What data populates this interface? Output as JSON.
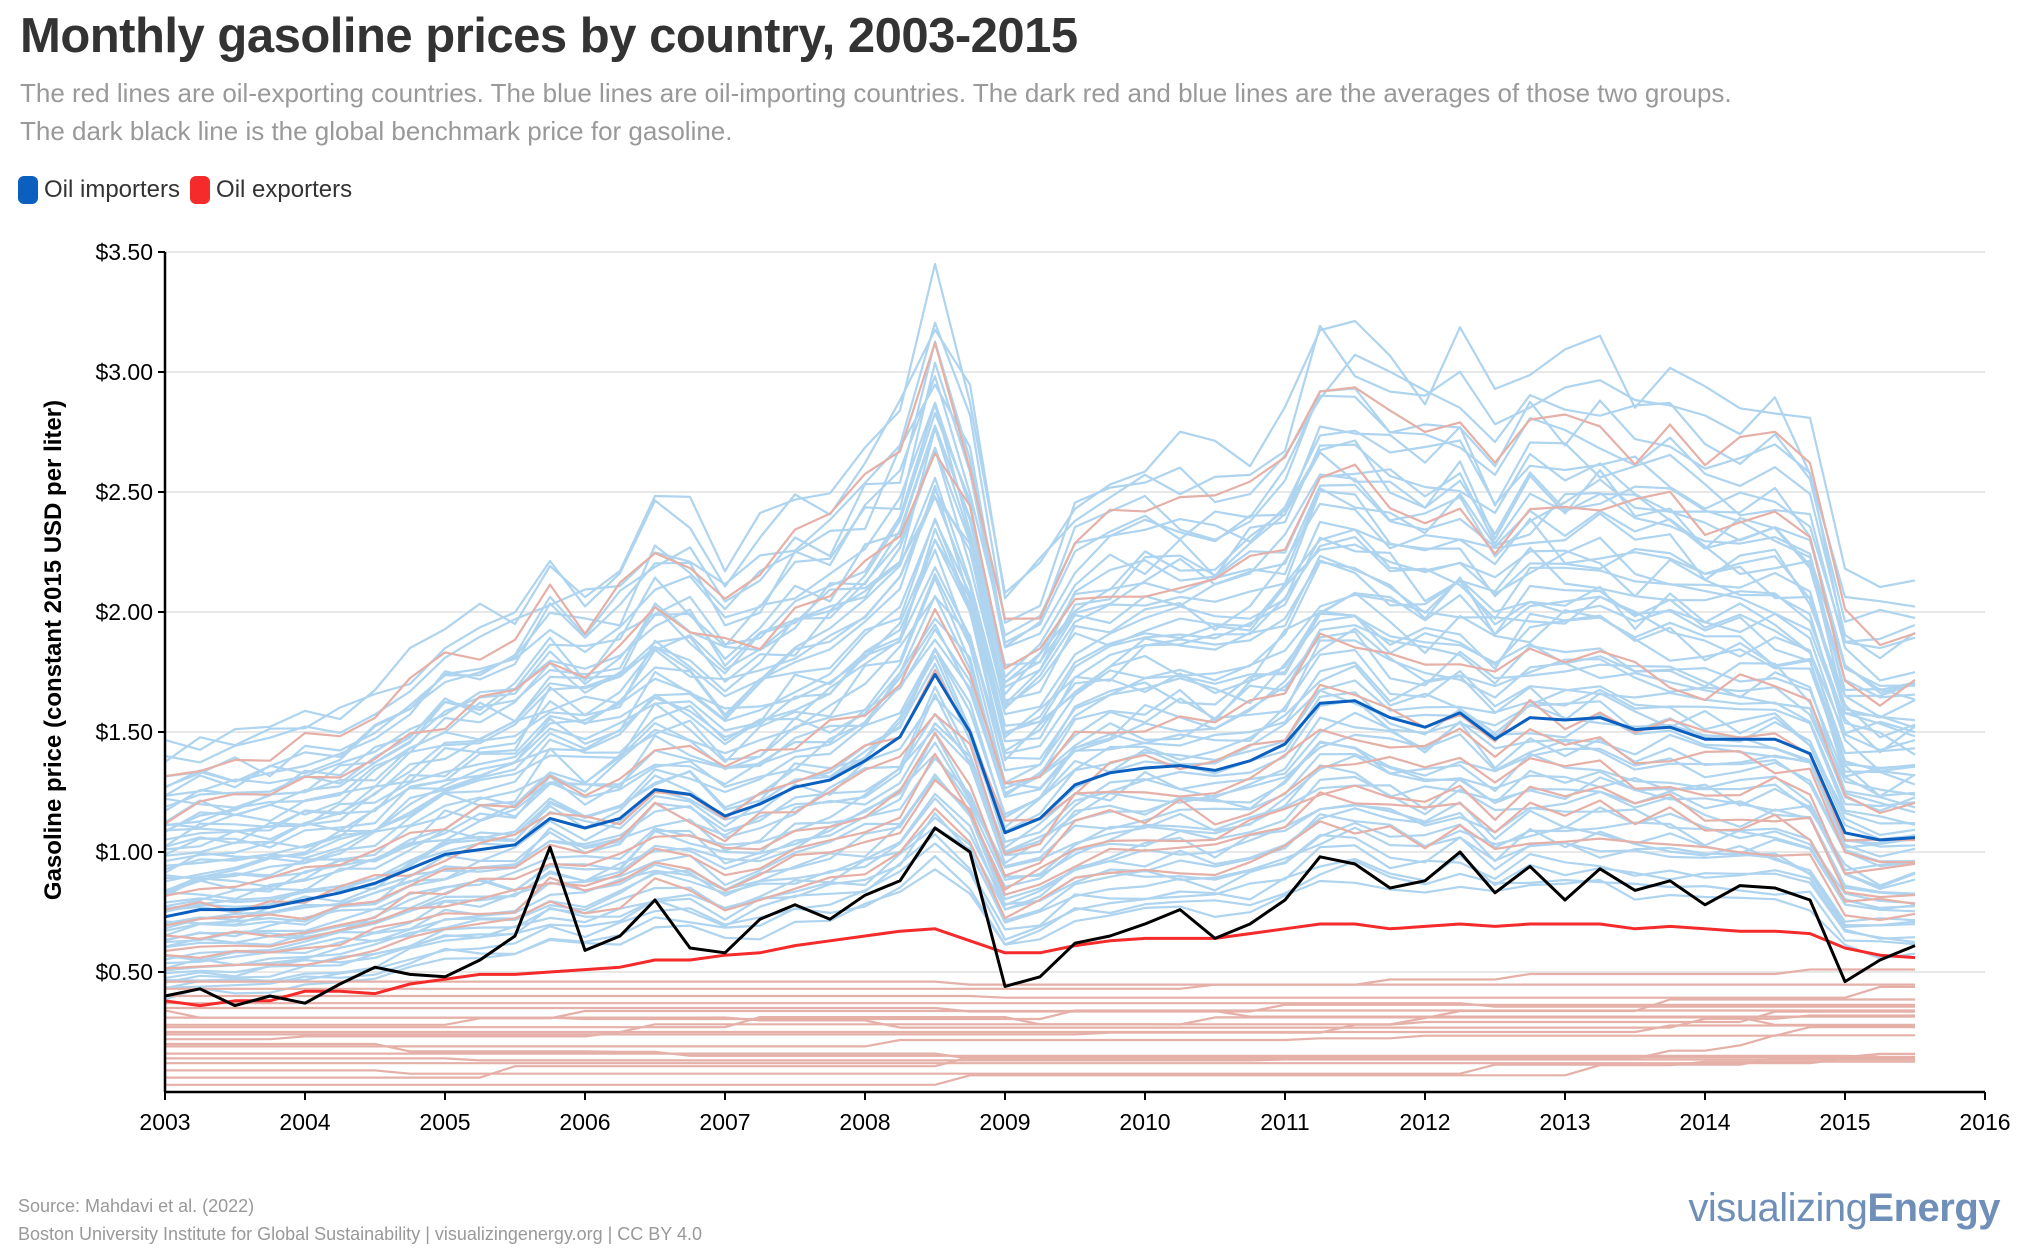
{
  "header": {
    "title": "Monthly gasoline prices by country, 2003-2015",
    "subtitle_line1": "The red lines are oil-exporting countries. The blue lines are oil-importing countries. The dark red and blue lines are the averages of those two groups.",
    "subtitle_line2": "The dark black line is the global benchmark price for gasoline."
  },
  "legend": [
    {
      "label": "Oil importers",
      "color": "#0a5fbf"
    },
    {
      "label": "Oil exporters",
      "color": "#f52a2a"
    }
  ],
  "footer": {
    "source": "Source: Mahdavi et al. (2022)",
    "credit": "Boston University Institute for Global Sustainability | visualizingenergy.org | CC BY 4.0",
    "logo_light": "visualizing",
    "logo_bold": "Energy"
  },
  "colors": {
    "importer_country": "#aed4ef",
    "exporter_country": "#e5b0a8",
    "importer_avg": "#0a5fbf",
    "exporter_avg": "#f52a2a",
    "benchmark": "#000000",
    "grid": "#e8e8e8"
  },
  "chart_data": {
    "type": "line",
    "title": "Monthly gasoline prices by country, 2003-2015",
    "xlabel": "",
    "ylabel": "Gasoline price (constant 2015 USD per liter)",
    "xlim": [
      2003,
      2016
    ],
    "ylim": [
      0,
      3.5
    ],
    "x_ticks": [
      "2003",
      "2004",
      "2005",
      "2006",
      "2007",
      "2008",
      "2009",
      "2010",
      "2011",
      "2012",
      "2013",
      "2014",
      "2015",
      "2016"
    ],
    "y_ticks": [
      {
        "value": 0.5,
        "label": "$0.50"
      },
      {
        "value": 1.0,
        "label": "$1.00"
      },
      {
        "value": 1.5,
        "label": "$1.50"
      },
      {
        "value": 2.0,
        "label": "$2.00"
      },
      {
        "value": 2.5,
        "label": "$2.50"
      },
      {
        "value": 3.0,
        "label": "$3.00"
      },
      {
        "value": 3.5,
        "label": "$3.50"
      }
    ],
    "grid": true,
    "legend_position": "top-left",
    "x_start": 2003.0,
    "x_step": 0.25,
    "series": [
      {
        "name": "Oil importers average",
        "role": "importer_avg",
        "values": [
          0.73,
          0.76,
          0.76,
          0.77,
          0.8,
          0.83,
          0.87,
          0.93,
          0.99,
          1.01,
          1.03,
          1.14,
          1.1,
          1.14,
          1.26,
          1.24,
          1.15,
          1.2,
          1.27,
          1.3,
          1.38,
          1.48,
          1.74,
          1.5,
          1.08,
          1.14,
          1.28,
          1.33,
          1.35,
          1.36,
          1.34,
          1.38,
          1.45,
          1.62,
          1.63,
          1.56,
          1.52,
          1.58,
          1.47,
          1.56,
          1.55,
          1.56,
          1.51,
          1.52,
          1.47,
          1.47,
          1.47,
          1.41,
          1.08,
          1.05,
          1.06
        ]
      },
      {
        "name": "Oil exporters average",
        "role": "exporter_avg",
        "values": [
          0.38,
          0.36,
          0.38,
          0.38,
          0.42,
          0.42,
          0.41,
          0.45,
          0.47,
          0.49,
          0.49,
          0.5,
          0.51,
          0.52,
          0.55,
          0.55,
          0.57,
          0.58,
          0.61,
          0.63,
          0.65,
          0.67,
          0.68,
          0.63,
          0.58,
          0.58,
          0.61,
          0.63,
          0.64,
          0.64,
          0.64,
          0.66,
          0.68,
          0.7,
          0.7,
          0.68,
          0.69,
          0.7,
          0.69,
          0.7,
          0.7,
          0.7,
          0.68,
          0.69,
          0.68,
          0.67,
          0.67,
          0.66,
          0.6,
          0.57,
          0.56
        ]
      },
      {
        "name": "Global benchmark price",
        "role": "benchmark",
        "values": [
          0.4,
          0.43,
          0.36,
          0.4,
          0.37,
          0.45,
          0.52,
          0.49,
          0.48,
          0.55,
          0.65,
          1.02,
          0.59,
          0.65,
          0.8,
          0.6,
          0.58,
          0.72,
          0.78,
          0.72,
          0.82,
          0.88,
          1.1,
          1.0,
          0.44,
          0.48,
          0.62,
          0.65,
          0.7,
          0.76,
          0.64,
          0.7,
          0.8,
          0.98,
          0.95,
          0.85,
          0.88,
          1.0,
          0.83,
          0.94,
          0.8,
          0.93,
          0.84,
          0.88,
          0.78,
          0.86,
          0.85,
          0.8,
          0.46,
          0.55,
          0.61
        ]
      }
    ],
    "country_series": {
      "importers_scale": [
        0.55,
        0.6,
        0.65,
        0.7,
        0.75,
        0.8,
        0.85,
        0.9,
        0.95,
        1.0,
        1.05,
        1.1,
        1.15,
        1.2,
        1.25,
        1.3,
        1.35,
        1.4,
        1.45,
        1.5,
        1.55,
        1.6,
        1.65,
        1.7,
        1.75,
        1.85,
        1.95,
        0.62,
        0.72,
        0.82,
        0.92,
        1.02,
        1.12,
        1.22,
        1.32,
        1.42,
        1.52,
        1.62,
        1.72,
        0.68,
        0.78,
        0.88,
        0.98,
        1.08,
        1.18,
        1.28,
        1.38,
        1.48,
        1.58,
        0.58,
        0.66,
        0.74,
        0.84,
        0.94,
        1.04,
        1.14,
        1.24,
        1.34,
        1.44,
        1.6,
        1.78,
        1.9
      ],
      "exporters_scale": [
        0.95,
        1.2,
        1.4,
        1.6,
        2.2,
        2.5,
        1.05,
        1.3,
        1.1
      ],
      "exporters_flat": [
        0.43,
        0.4,
        0.37,
        0.34,
        0.31,
        0.28,
        0.25,
        0.22,
        0.19,
        0.16,
        0.12,
        0.09,
        0.06,
        0.03,
        0.46,
        0.35,
        0.27,
        0.14,
        0.24,
        0.2
      ]
    }
  }
}
